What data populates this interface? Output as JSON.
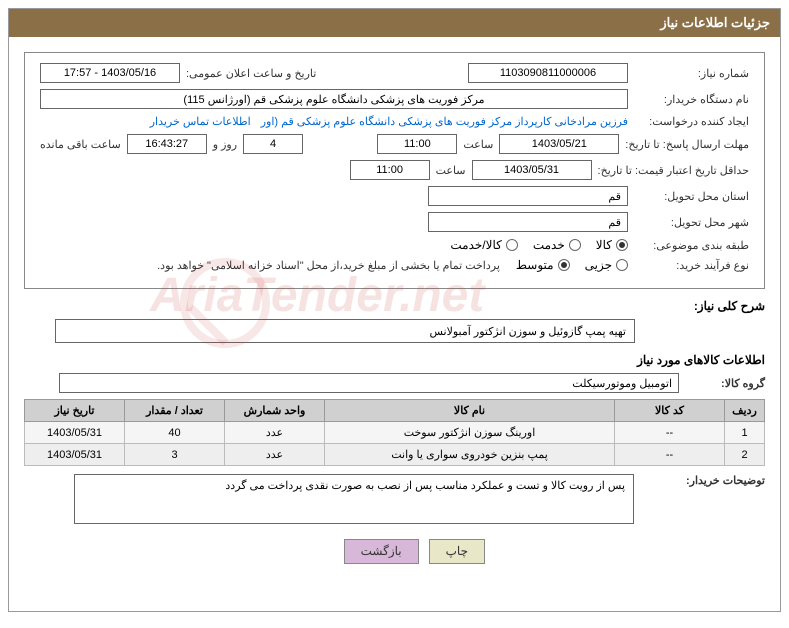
{
  "title": "جزئیات اطلاعات نیاز",
  "labels": {
    "need_number": "شماره نیاز:",
    "announcement_datetime": "تاریخ و ساعت اعلان عمومی:",
    "buyer_org": "نام دستگاه خریدار:",
    "request_creator": "ایجاد کننده درخواست:",
    "buyer_contact": "اطلاعات تماس خریدار",
    "deadline_send": "مهلت ارسال پاسخ: تا تاریخ:",
    "time": "ساعت",
    "days_and": "روز و",
    "remaining": "ساعت باقی مانده",
    "price_validity": "حداقل تاریخ اعتبار قیمت: تا تاریخ:",
    "delivery_province": "استان محل تحویل:",
    "delivery_city": "شهر محل تحویل:",
    "subject_category": "طبقه بندی موضوعی:",
    "purchase_type": "نوع فرآیند خرید:",
    "payment_note": "پرداخت تمام یا بخشی از مبلغ خرید،از محل \"اسناد خزانه اسلامی\" خواهد بود.",
    "general_desc": "شرح کلی نیاز:",
    "goods_info": "اطلاعات کالاهای مورد نیاز",
    "goods_group": "گروه کالا:",
    "buyer_notes": "توضیحات خریدار:"
  },
  "values": {
    "need_number": "1103090811000006",
    "announcement_datetime": "1403/05/16 - 17:57",
    "buyer_org": "مرکز فوریت های پزشکی دانشگاه علوم پزشکی قم (اورژانس 115)",
    "request_creator": "فرزین مرادخانی کارپرداز مرکز فوریت های پزشکی دانشگاه علوم پزشکی قم (اور",
    "deadline_date": "1403/05/21",
    "deadline_time": "11:00",
    "remaining_days": "4",
    "remaining_time": "16:43:27",
    "price_validity_date": "1403/05/31",
    "price_validity_time": "11:00",
    "delivery_province": "قم",
    "delivery_city": "قم",
    "general_desc": "تهیه پمپ گازوئیل و سوزن انژکتور آمبولانس",
    "goods_group": "اتومبیل وموتورسیکلت",
    "buyer_notes": "پس از رویت کالا و تست و عملکرد مناسب پس از نصب به صورت نقدی پرداخت می گردد"
  },
  "radios": {
    "category": {
      "options": [
        "کالا",
        "خدمت",
        "کالا/خدمت"
      ],
      "selected": 0
    },
    "purchase": {
      "options": [
        "جزیی",
        "متوسط"
      ],
      "selected": 1
    }
  },
  "table": {
    "headers": [
      "ردیف",
      "کد کالا",
      "نام کالا",
      "واحد شمارش",
      "تعداد / مقدار",
      "تاریخ نیاز"
    ],
    "rows": [
      [
        "1",
        "--",
        "اورینگ سوزن انژکتور سوخت",
        "عدد",
        "40",
        "1403/05/31"
      ],
      [
        "2",
        "--",
        "پمپ بنزین خودروی سواری یا وانت",
        "عدد",
        "3",
        "1403/05/31"
      ]
    ],
    "col_widths": [
      "40px",
      "110px",
      "auto",
      "100px",
      "100px",
      "100px"
    ]
  },
  "buttons": {
    "print": "چاپ",
    "back": "بازگشت"
  },
  "watermark": "AriaTender.net",
  "colors": {
    "title_bg": "#8b6f47",
    "title_fg": "#ffffff",
    "border": "#888888",
    "link": "#0066cc"
  }
}
